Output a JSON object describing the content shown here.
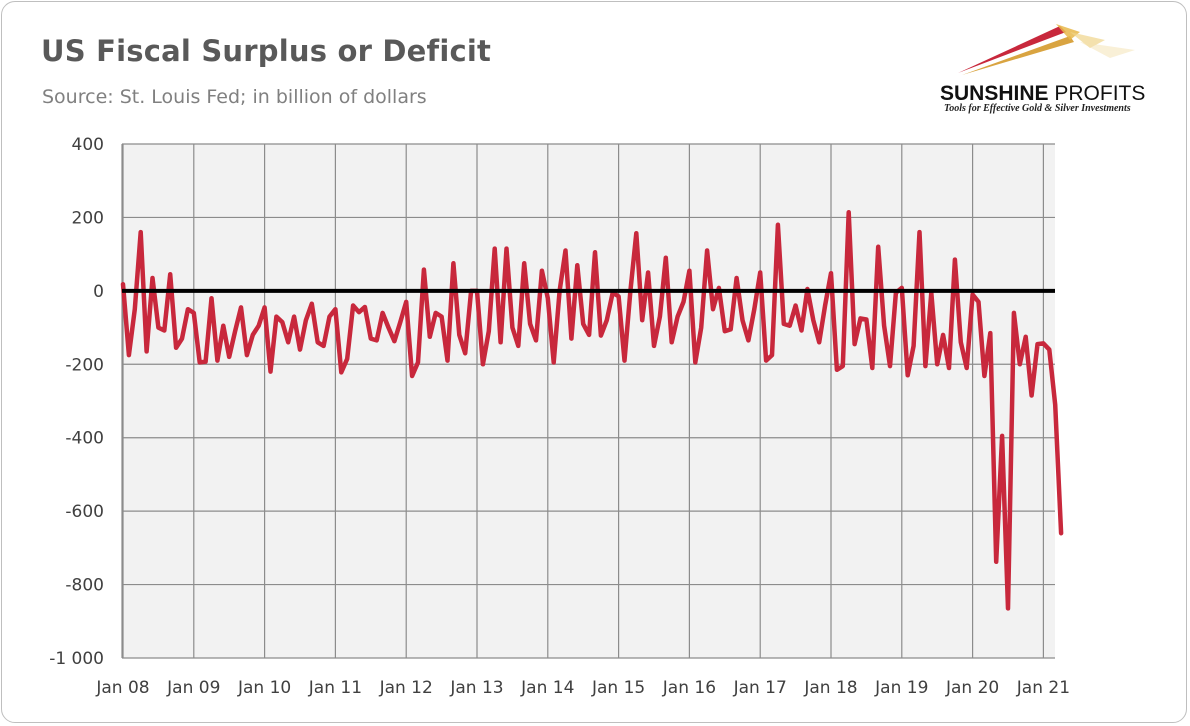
{
  "header": {
    "title": "US Fiscal Surplus or Deficit",
    "subtitle": "Source: St. Louis Fed; in billion of dollars"
  },
  "logo": {
    "name_bold": "SUNSHINE",
    "name_thin": " PROFITS",
    "tagline": "Tools for Effective Gold & Silver Investments"
  },
  "colors": {
    "line": "#c8283c",
    "zero_line": "#000000",
    "grid": "#8c8c8c",
    "plot_bg": "#f2f2f2"
  },
  "chart_data": {
    "type": "line",
    "title": "US Fiscal Surplus or Deficit",
    "subtitle": "Source: St. Louis Fed; in billion of dollars",
    "xlabel": "",
    "ylabel": "",
    "ylim": [
      -1000,
      400
    ],
    "yticks": [
      400,
      200,
      0,
      -200,
      -400,
      -600,
      -800,
      -1000
    ],
    "ytick_labels": [
      "400",
      "200",
      "0",
      "-200",
      "-400",
      "-600",
      "-800",
      "-1 000"
    ],
    "xtick_labels": [
      "Jan 08",
      "Jan 09",
      "Jan 10",
      "Jan 11",
      "Jan 12",
      "Jan 13",
      "Jan 14",
      "Jan 15",
      "Jan 16",
      "Jan 17",
      "Jan 18",
      "Jan 19",
      "Jan 20",
      "Jan 21"
    ],
    "grid": true,
    "reference_line": 0,
    "x_start": "Jan 08",
    "frequency": "monthly",
    "series": [
      {
        "values": [
          18,
          -175,
          -50,
          160,
          -165,
          35,
          -100,
          -108,
          45,
          -155,
          -130,
          -50,
          -60,
          -195,
          -193,
          -20,
          -190,
          -95,
          -180,
          -110,
          -45,
          -175,
          -120,
          -95,
          -45,
          -220,
          -70,
          -85,
          -140,
          -70,
          -160,
          -80,
          -35,
          -140,
          -150,
          -70,
          -50,
          -222,
          -185,
          -40,
          -58,
          -44,
          -130,
          -135,
          -60,
          -100,
          -137,
          -85,
          -30,
          -232,
          -195,
          58,
          -125,
          -60,
          -70,
          -190,
          75,
          -120,
          -170,
          0,
          0,
          -200,
          -110,
          115,
          -140,
          115,
          -100,
          -150,
          75,
          -90,
          -135,
          55,
          -20,
          -195,
          0,
          110,
          -130,
          70,
          -90,
          -120,
          105,
          -122,
          -80,
          -5,
          -15,
          -190,
          0,
          157,
          -80,
          50,
          -150,
          -70,
          90,
          -140,
          -70,
          -30,
          55,
          -195,
          -100,
          110,
          -50,
          8,
          -110,
          -105,
          35,
          -80,
          -135,
          -50,
          50,
          -190,
          -175,
          180,
          -90,
          -95,
          -40,
          -108,
          5,
          -80,
          -140,
          -40,
          48,
          -215,
          -205,
          214,
          -145,
          -75,
          -78,
          -210,
          120,
          -95,
          -205,
          -5,
          8,
          -230,
          -150,
          160,
          -205,
          -5,
          -200,
          -120,
          -210,
          85,
          -140,
          -210,
          -10,
          -30,
          -232,
          -115,
          -738,
          -395,
          -865,
          -60,
          -200,
          -125,
          -285,
          -145,
          -143,
          -160,
          -310,
          -660
        ]
      }
    ]
  }
}
